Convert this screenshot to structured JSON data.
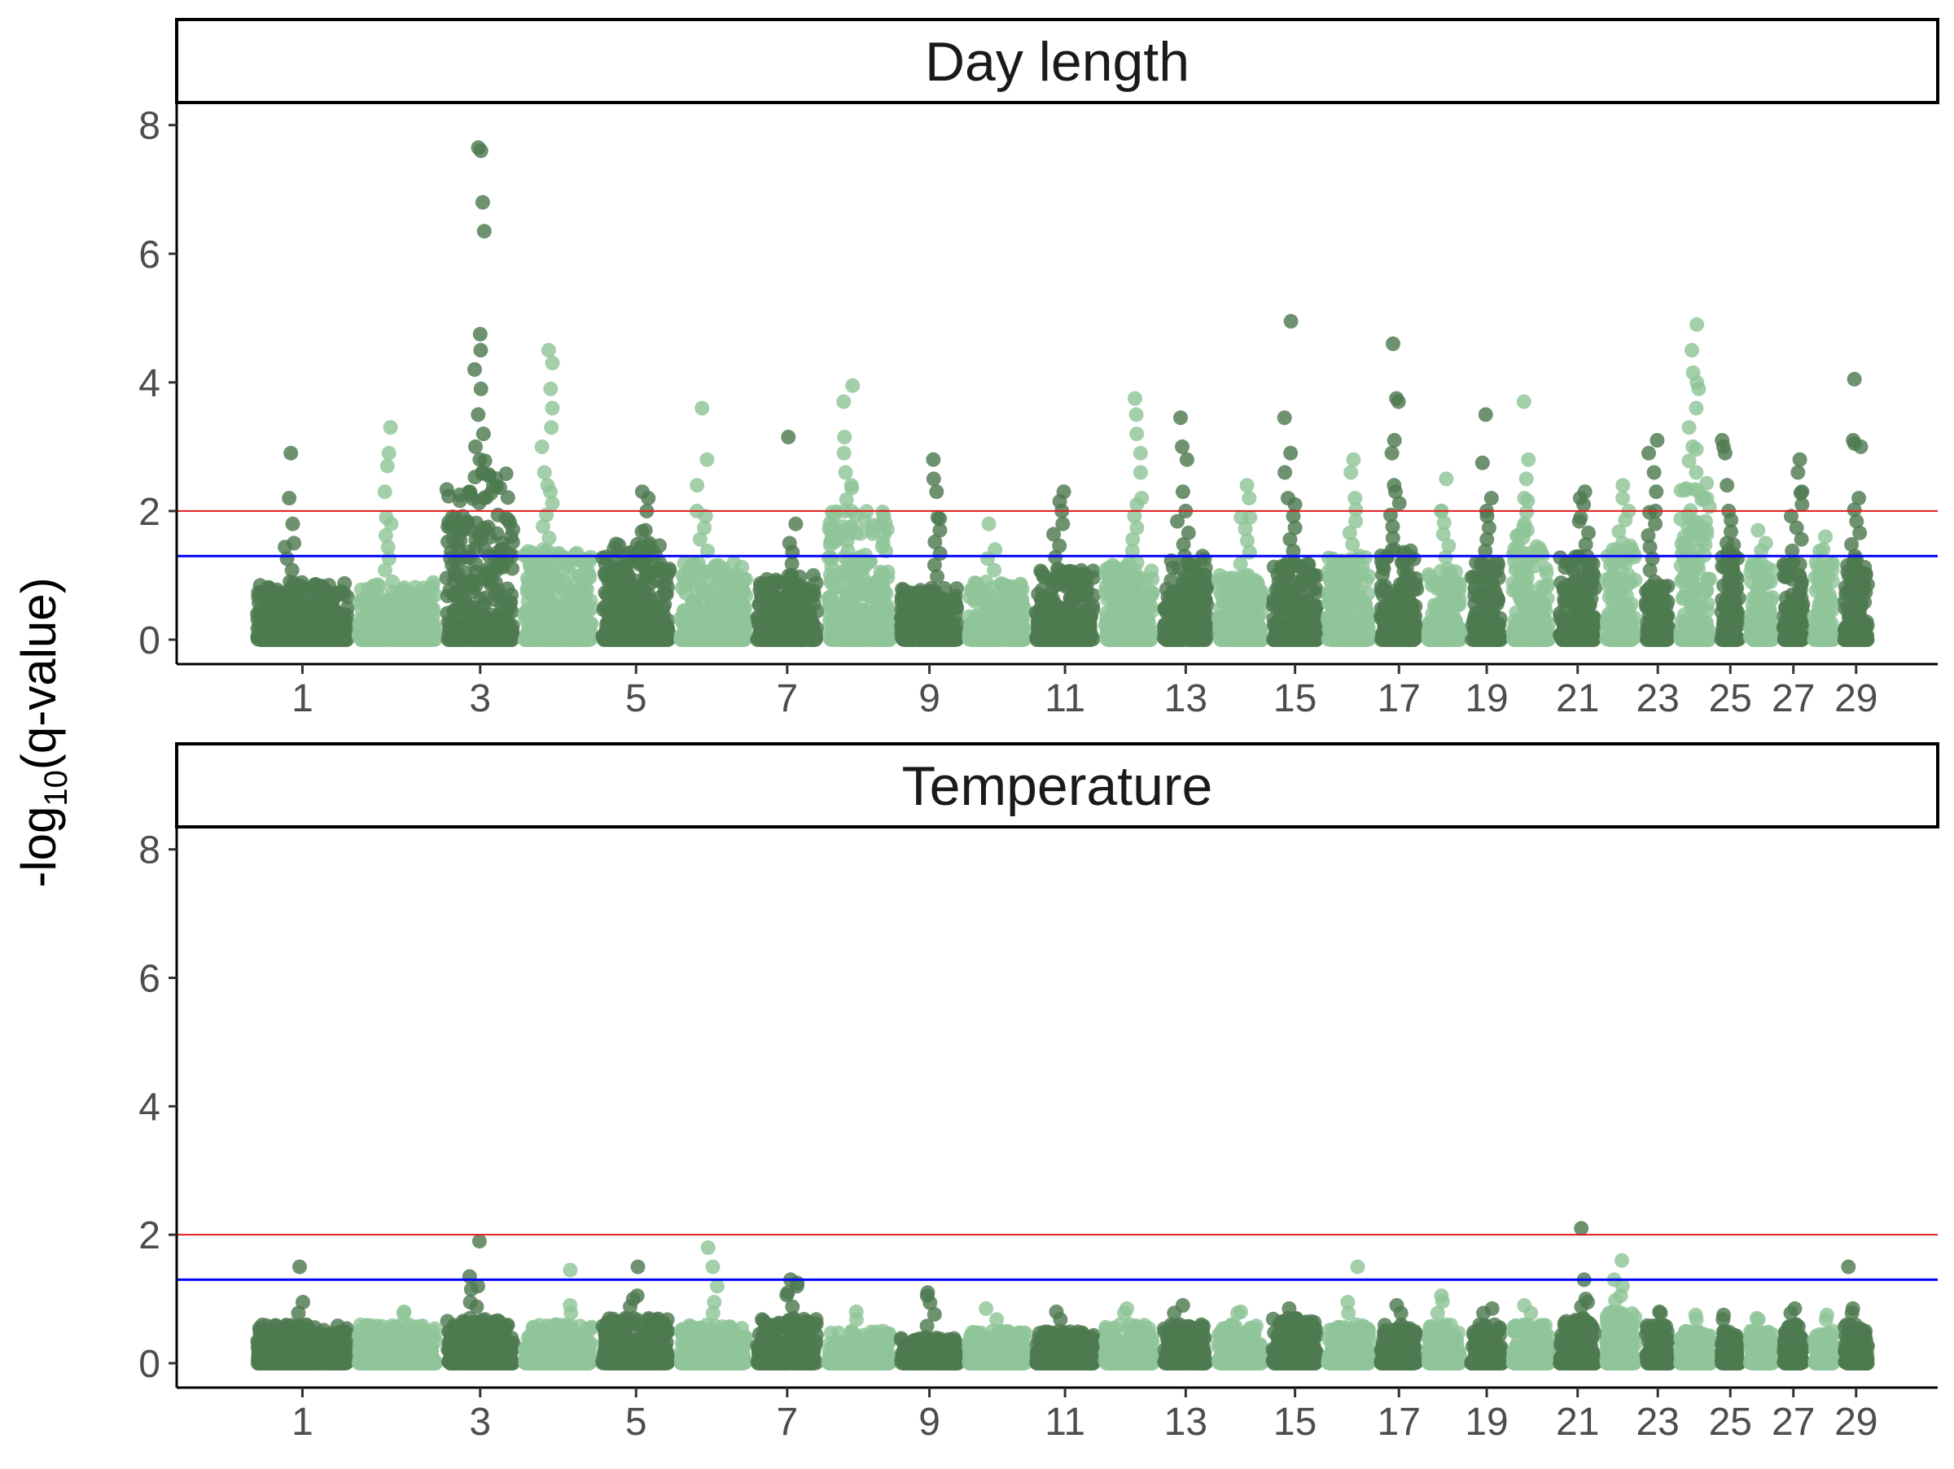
{
  "chart_data": [
    {
      "type": "scatter",
      "title": "Day length",
      "ylabel": "-log10(q-value)",
      "ylim": [
        0,
        8.3
      ],
      "y_ticks": [
        "0",
        "2",
        "4",
        "6",
        "8"
      ],
      "x_tick_labels": [
        "1",
        "3",
        "5",
        "7",
        "9",
        "11",
        "13",
        "15",
        "17",
        "19",
        "21",
        "23",
        "25",
        "27",
        "29"
      ],
      "thresholds": [
        {
          "value": 2,
          "color": "#e31a1c"
        },
        {
          "value": 1.3,
          "color": "#0000ff"
        }
      ],
      "chromosomes": [
        {
          "chr": 1,
          "typical_max": 0.9,
          "peaks": [
            2.9,
            2.2,
            1.8,
            1.5
          ]
        },
        {
          "chr": 2,
          "typical_max": 0.9,
          "peaks": [
            3.3,
            2.9,
            2.7,
            2.3,
            1.9
          ]
        },
        {
          "chr": 3,
          "typical_max": 2.6,
          "peaks": [
            7.65,
            7.6,
            6.8,
            6.35,
            4.75,
            4.5,
            4.2,
            3.9,
            3.5,
            3.2,
            3.0,
            2.8
          ]
        },
        {
          "chr": 4,
          "typical_max": 1.4,
          "peaks": [
            4.5,
            4.3,
            3.9,
            3.6,
            3.3,
            3.0,
            2.6,
            2.4
          ]
        },
        {
          "chr": 5,
          "typical_max": 1.5,
          "peaks": [
            2.3,
            2.2,
            2.0,
            1.7
          ]
        },
        {
          "chr": 6,
          "typical_max": 1.2,
          "peaks": [
            3.6,
            2.8,
            2.4,
            2.0
          ]
        },
        {
          "chr": 7,
          "typical_max": 1.0,
          "peaks": [
            3.15,
            1.8,
            1.5
          ]
        },
        {
          "chr": 8,
          "typical_max": 2.0,
          "peaks": [
            3.95,
            3.7,
            3.15,
            2.9,
            2.6,
            2.4
          ]
        },
        {
          "chr": 9,
          "typical_max": 0.8,
          "peaks": [
            2.8,
            2.5,
            2.3,
            1.9
          ]
        },
        {
          "chr": 10,
          "typical_max": 0.9,
          "peaks": [
            1.8,
            1.4
          ]
        },
        {
          "chr": 11,
          "typical_max": 1.1,
          "peaks": [
            2.3,
            2.15,
            2.0,
            1.8
          ]
        },
        {
          "chr": 12,
          "typical_max": 1.2,
          "peaks": [
            3.75,
            3.5,
            3.2,
            2.9,
            2.6,
            2.2
          ]
        },
        {
          "chr": 13,
          "typical_max": 1.3,
          "peaks": [
            3.45,
            3.0,
            2.8,
            2.3,
            2.0
          ]
        },
        {
          "chr": 14,
          "typical_max": 1.0,
          "peaks": [
            2.4,
            2.2,
            1.9
          ]
        },
        {
          "chr": 15,
          "typical_max": 1.2,
          "peaks": [
            4.95,
            3.45,
            2.9,
            2.6,
            2.2
          ]
        },
        {
          "chr": 16,
          "typical_max": 1.3,
          "peaks": [
            2.8,
            2.6,
            2.2
          ]
        },
        {
          "chr": 17,
          "typical_max": 1.4,
          "peaks": [
            4.6,
            3.75,
            3.7,
            3.1,
            2.9,
            2.4
          ]
        },
        {
          "chr": 18,
          "typical_max": 1.1,
          "peaks": [
            2.5,
            2.0
          ]
        },
        {
          "chr": 19,
          "typical_max": 1.2,
          "peaks": [
            3.5,
            2.75,
            2.2,
            2.0
          ]
        },
        {
          "chr": 20,
          "typical_max": 1.8,
          "peaks": [
            3.7,
            2.8,
            2.5,
            2.2
          ]
        },
        {
          "chr": 21,
          "typical_max": 1.3,
          "peaks": [
            2.3,
            2.2,
            2.1,
            1.9
          ]
        },
        {
          "chr": 22,
          "typical_max": 1.5,
          "peaks": [
            2.4,
            2.2,
            2.0
          ]
        },
        {
          "chr": 23,
          "typical_max": 0.9,
          "peaks": [
            3.1,
            2.9,
            2.6,
            2.3,
            2.0
          ]
        },
        {
          "chr": 24,
          "typical_max": 2.6,
          "peaks": [
            4.9,
            4.5,
            4.15,
            4.0,
            3.9,
            3.6,
            3.3,
            3.0
          ]
        },
        {
          "chr": 25,
          "typical_max": 1.5,
          "peaks": [
            3.1,
            3.0,
            2.9,
            2.4,
            2.0
          ]
        },
        {
          "chr": 26,
          "typical_max": 1.2,
          "peaks": [
            1.7,
            1.5
          ]
        },
        {
          "chr": 27,
          "typical_max": 1.2,
          "peaks": [
            2.8,
            2.6,
            2.3
          ]
        },
        {
          "chr": 28,
          "typical_max": 1.2,
          "peaks": [
            1.6,
            1.4
          ]
        },
        {
          "chr": 29,
          "typical_max": 1.3,
          "peaks": [
            4.05,
            3.1,
            3.05,
            3.0,
            2.2
          ]
        }
      ]
    },
    {
      "type": "scatter",
      "title": "Temperature",
      "ylabel": "-log10(q-value)",
      "ylim": [
        0,
        8.3
      ],
      "y_ticks": [
        "0",
        "2",
        "4",
        "6",
        "8"
      ],
      "x_tick_labels": [
        "1",
        "3",
        "5",
        "7",
        "9",
        "11",
        "13",
        "15",
        "17",
        "19",
        "21",
        "23",
        "25",
        "27",
        "29"
      ],
      "thresholds": [
        {
          "value": 2,
          "color": "#e31a1c"
        },
        {
          "value": 1.3,
          "color": "#0000ff"
        }
      ],
      "chromosomes": [
        {
          "chr": 1,
          "typical_max": 0.6,
          "peaks": [
            1.5,
            0.95
          ]
        },
        {
          "chr": 2,
          "typical_max": 0.6,
          "peaks": [
            0.8
          ]
        },
        {
          "chr": 3,
          "typical_max": 0.7,
          "peaks": [
            1.9,
            1.35,
            1.2,
            1.15,
            0.95
          ]
        },
        {
          "chr": 4,
          "typical_max": 0.6,
          "peaks": [
            1.45,
            0.9
          ]
        },
        {
          "chr": 5,
          "typical_max": 0.7,
          "peaks": [
            1.5,
            1.05,
            1.0
          ]
        },
        {
          "chr": 6,
          "typical_max": 0.6,
          "peaks": [
            1.8,
            1.5,
            1.2,
            0.95
          ]
        },
        {
          "chr": 7,
          "typical_max": 0.7,
          "peaks": [
            1.3,
            1.25,
            1.2,
            1.1
          ]
        },
        {
          "chr": 8,
          "typical_max": 0.5,
          "peaks": [
            0.8
          ]
        },
        {
          "chr": 9,
          "typical_max": 0.4,
          "peaks": [
            1.1,
            1.05
          ]
        },
        {
          "chr": 10,
          "typical_max": 0.5,
          "peaks": [
            0.85
          ]
        },
        {
          "chr": 11,
          "typical_max": 0.5,
          "peaks": [
            0.8
          ]
        },
        {
          "chr": 12,
          "typical_max": 0.6,
          "peaks": [
            0.85
          ]
        },
        {
          "chr": 13,
          "typical_max": 0.6,
          "peaks": [
            0.9
          ]
        },
        {
          "chr": 14,
          "typical_max": 0.6,
          "peaks": [
            0.8
          ]
        },
        {
          "chr": 15,
          "typical_max": 0.7,
          "peaks": [
            0.85
          ]
        },
        {
          "chr": 16,
          "typical_max": 0.6,
          "peaks": [
            1.5,
            0.95
          ]
        },
        {
          "chr": 17,
          "typical_max": 0.6,
          "peaks": [
            0.9
          ]
        },
        {
          "chr": 18,
          "typical_max": 0.6,
          "peaks": [
            1.05
          ]
        },
        {
          "chr": 19,
          "typical_max": 0.6,
          "peaks": [
            0.85
          ]
        },
        {
          "chr": 20,
          "typical_max": 0.6,
          "peaks": [
            0.9
          ]
        },
        {
          "chr": 21,
          "typical_max": 0.7,
          "peaks": [
            2.1,
            1.3,
            1.0,
            0.95
          ]
        },
        {
          "chr": 22,
          "typical_max": 0.8,
          "peaks": [
            1.6,
            1.3,
            1.2,
            1.05
          ]
        },
        {
          "chr": 23,
          "typical_max": 0.6,
          "peaks": [
            0.8
          ]
        },
        {
          "chr": 24,
          "typical_max": 0.5,
          "peaks": [
            0.75
          ]
        },
        {
          "chr": 25,
          "typical_max": 0.5,
          "peaks": [
            0.75
          ]
        },
        {
          "chr": 26,
          "typical_max": 0.5,
          "peaks": [
            0.7
          ]
        },
        {
          "chr": 27,
          "typical_max": 0.6,
          "peaks": [
            0.85
          ]
        },
        {
          "chr": 28,
          "typical_max": 0.5,
          "peaks": [
            0.75
          ]
        },
        {
          "chr": 29,
          "typical_max": 0.6,
          "peaks": [
            1.5,
            0.85
          ]
        }
      ]
    }
  ],
  "colors": {
    "odd_chromosome": "#4e7a51",
    "even_chromosome": "#8fc499",
    "strip_fill": "#ffffff",
    "frame": "#000000"
  }
}
